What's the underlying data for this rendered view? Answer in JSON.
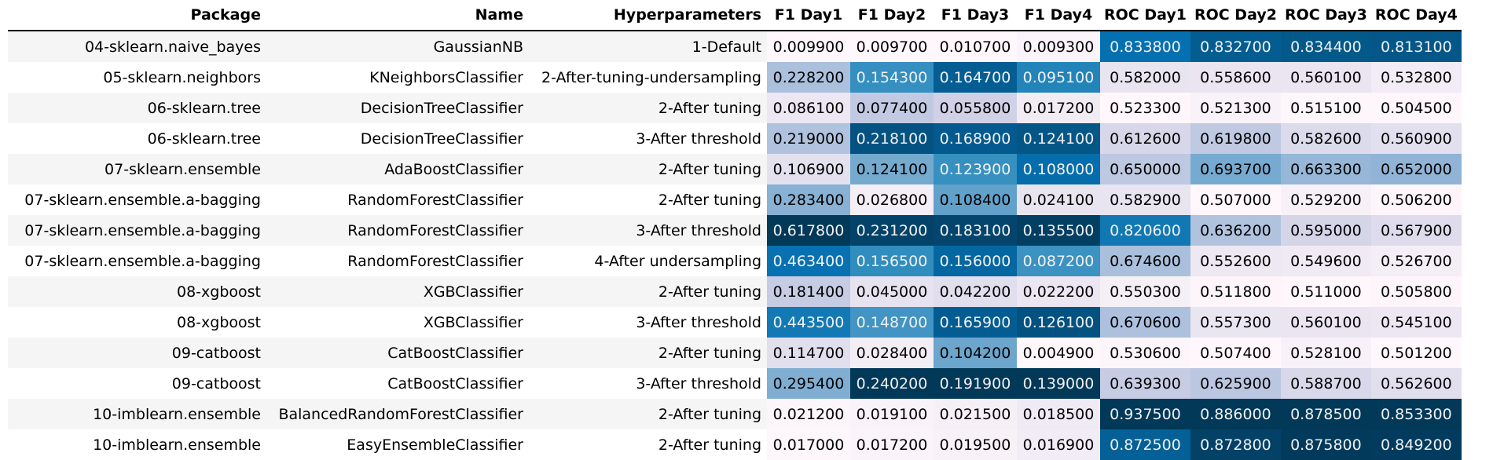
{
  "chart_data": {
    "type": "table",
    "columns": [
      "Package",
      "Name",
      "Hyperparameters",
      "F1 Day1",
      "F1 Day2",
      "F1 Day3",
      "F1 Day4",
      "ROC Day1",
      "ROC Day2",
      "ROC Day3",
      "ROC Day4"
    ],
    "rows": [
      {
        "package": "04-sklearn.naive_bayes",
        "name": "GaussianNB",
        "hyper": "1-Default",
        "values": [
          "0.009900",
          "0.009700",
          "0.010700",
          "0.009300",
          "0.833800",
          "0.832700",
          "0.834400",
          "0.813100"
        ]
      },
      {
        "package": "05-sklearn.neighbors",
        "name": "KNeighborsClassifier",
        "hyper": "2-After-tuning-undersampling",
        "values": [
          "0.228200",
          "0.154300",
          "0.164700",
          "0.095100",
          "0.582000",
          "0.558600",
          "0.560100",
          "0.532800"
        ]
      },
      {
        "package": "06-sklearn.tree",
        "name": "DecisionTreeClassifier",
        "hyper": "2-After tuning",
        "values": [
          "0.086100",
          "0.077400",
          "0.055800",
          "0.017200",
          "0.523300",
          "0.521300",
          "0.515100",
          "0.504500"
        ]
      },
      {
        "package": "06-sklearn.tree",
        "name": "DecisionTreeClassifier",
        "hyper": "3-After threshold",
        "values": [
          "0.219000",
          "0.218100",
          "0.168900",
          "0.124100",
          "0.612600",
          "0.619800",
          "0.582600",
          "0.560900"
        ]
      },
      {
        "package": "07-sklearn.ensemble",
        "name": "AdaBoostClassifier",
        "hyper": "2-After tuning",
        "values": [
          "0.106900",
          "0.124100",
          "0.123900",
          "0.108000",
          "0.650000",
          "0.693700",
          "0.663300",
          "0.652000"
        ]
      },
      {
        "package": "07-sklearn.ensemble.a-bagging",
        "name": "RandomForestClassifier",
        "hyper": "2-After tuning",
        "values": [
          "0.283400",
          "0.026800",
          "0.108400",
          "0.024100",
          "0.582900",
          "0.507000",
          "0.529200",
          "0.506200"
        ]
      },
      {
        "package": "07-sklearn.ensemble.a-bagging",
        "name": "RandomForestClassifier",
        "hyper": "3-After threshold",
        "values": [
          "0.617800",
          "0.231200",
          "0.183100",
          "0.135500",
          "0.820600",
          "0.636200",
          "0.595000",
          "0.567900"
        ]
      },
      {
        "package": "07-sklearn.ensemble.a-bagging",
        "name": "RandomForestClassifier",
        "hyper": "4-After undersampling",
        "values": [
          "0.463400",
          "0.156500",
          "0.156000",
          "0.087200",
          "0.674600",
          "0.552600",
          "0.549600",
          "0.526700"
        ]
      },
      {
        "package": "08-xgboost",
        "name": "XGBClassifier",
        "hyper": "2-After tuning",
        "values": [
          "0.181400",
          "0.045000",
          "0.042200",
          "0.022200",
          "0.550300",
          "0.511800",
          "0.511000",
          "0.505800"
        ]
      },
      {
        "package": "08-xgboost",
        "name": "XGBClassifier",
        "hyper": "3-After threshold",
        "values": [
          "0.443500",
          "0.148700",
          "0.165900",
          "0.126100",
          "0.670600",
          "0.557300",
          "0.560100",
          "0.545100"
        ]
      },
      {
        "package": "09-catboost",
        "name": "CatBoostClassifier",
        "hyper": "2-After tuning",
        "values": [
          "0.114700",
          "0.028400",
          "0.104200",
          "0.004900",
          "0.530600",
          "0.507400",
          "0.528100",
          "0.501200"
        ]
      },
      {
        "package": "09-catboost",
        "name": "CatBoostClassifier",
        "hyper": "3-After threshold",
        "values": [
          "0.295400",
          "0.240200",
          "0.191900",
          "0.139000",
          "0.639300",
          "0.625900",
          "0.588700",
          "0.562600"
        ]
      },
      {
        "package": "10-imblearn.ensemble",
        "name": "BalancedRandomForestClassifier",
        "hyper": "2-After tuning",
        "values": [
          "0.021200",
          "0.019100",
          "0.021500",
          "0.018500",
          "0.937500",
          "0.886000",
          "0.878500",
          "0.853300"
        ]
      },
      {
        "package": "10-imblearn.ensemble",
        "name": "EasyEnsembleClassifier",
        "hyper": "2-After tuning",
        "values": [
          "0.017000",
          "0.017200",
          "0.019500",
          "0.016900",
          "0.872500",
          "0.872800",
          "0.875800",
          "0.849200"
        ]
      }
    ],
    "colormap": "PuBu",
    "colormap_stops": [
      "#fff7fb",
      "#ece7f2",
      "#d0d1e6",
      "#a6bddb",
      "#74a9cf",
      "#3690c0",
      "#0570b0",
      "#045a8d",
      "#023858"
    ],
    "scale": "per-column"
  }
}
